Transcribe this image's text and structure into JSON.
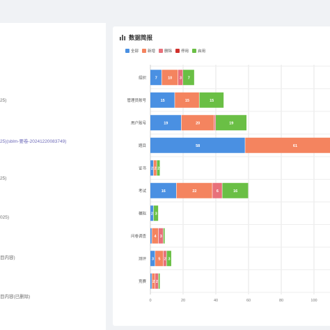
{
  "left_panel": {
    "lines": [
      {
        "text": "25)",
        "link": false
      },
      {
        "text": "25)(sblm-要卷-20241220083749)",
        "link": true
      },
      {
        "text": "25)",
        "link": false
      },
      {
        "text": "025)",
        "link": false
      },
      {
        "text": "目内容)",
        "link": false
      },
      {
        "text": "目内容(已删除)",
        "link": false
      }
    ]
  },
  "panel": {
    "title": "数据简报"
  },
  "chart_data": {
    "type": "bar",
    "orientation": "horizontal",
    "stacked": true,
    "title": "数据简报",
    "categories": [
      "组织",
      "管理员账号",
      "用户账号",
      "题目",
      "证书",
      "考试",
      "模拟",
      "问卷调查",
      "测评",
      "竞赛"
    ],
    "series": [
      {
        "name": "全部",
        "color": "#4a90e2",
        "values": [
          7,
          15,
          19,
          58,
          2,
          16,
          2,
          1,
          3,
          1
        ]
      },
      {
        "name": "新增",
        "color": "#f4845f",
        "values": [
          10,
          15,
          20,
          61,
          2,
          22,
          0,
          4,
          5,
          2
        ]
      },
      {
        "name": "删除",
        "color": "#e8707a",
        "values": [
          3,
          0,
          1,
          0,
          0,
          6,
          0,
          3,
          2,
          2
        ]
      },
      {
        "name": "停用",
        "color": "#d0312d",
        "values": [
          0,
          0,
          0,
          0,
          0,
          0,
          0,
          0,
          0,
          0
        ]
      },
      {
        "name": "启用",
        "color": "#6abf45",
        "values": [
          7,
          15,
          19,
          0,
          2,
          16,
          3,
          1,
          3,
          1
        ]
      }
    ],
    "value_labels": [
      [
        "7",
        "10",
        "3",
        "",
        "7"
      ],
      [
        "15",
        "15",
        "",
        "",
        "15"
      ],
      [
        "19",
        "20",
        "",
        "",
        "19"
      ],
      [
        "58",
        "61",
        "",
        "",
        ""
      ],
      [
        "2",
        "2",
        "",
        "",
        "2"
      ],
      [
        "16",
        "22",
        "6",
        "",
        "16"
      ],
      [
        "2",
        "",
        "",
        "",
        "3"
      ],
      [
        "",
        "4",
        "3",
        "",
        ""
      ],
      [
        "3",
        "5",
        "2",
        "",
        "3"
      ],
      [
        "",
        "2",
        "2",
        "",
        ""
      ]
    ],
    "x_ticks": [
      0,
      20,
      40,
      60,
      80,
      100
    ],
    "xlim": [
      0,
      110
    ],
    "grid": "vertical",
    "legend_position": "top-left"
  }
}
